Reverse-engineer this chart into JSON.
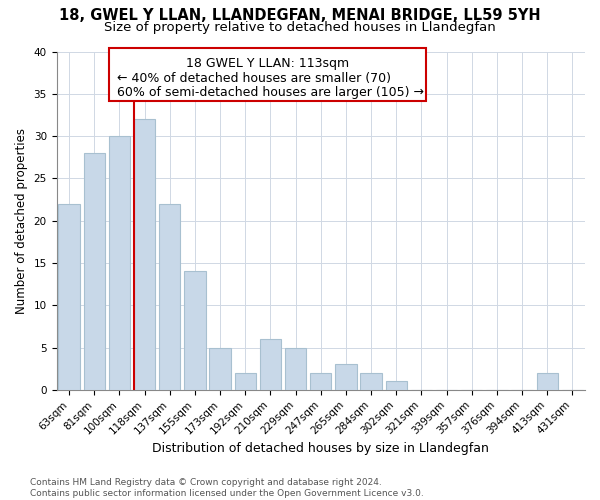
{
  "title": "18, GWEL Y LLAN, LLANDEGFAN, MENAI BRIDGE, LL59 5YH",
  "subtitle": "Size of property relative to detached houses in Llandegfan",
  "xlabel": "Distribution of detached houses by size in Llandegfan",
  "ylabel": "Number of detached properties",
  "bar_labels": [
    "63sqm",
    "81sqm",
    "100sqm",
    "118sqm",
    "137sqm",
    "155sqm",
    "173sqm",
    "192sqm",
    "210sqm",
    "229sqm",
    "247sqm",
    "265sqm",
    "284sqm",
    "302sqm",
    "321sqm",
    "339sqm",
    "357sqm",
    "376sqm",
    "394sqm",
    "413sqm",
    "431sqm"
  ],
  "bar_values": [
    22,
    28,
    30,
    32,
    22,
    14,
    5,
    2,
    6,
    5,
    2,
    3,
    2,
    1,
    0,
    0,
    0,
    0,
    0,
    2,
    0
  ],
  "bar_color": "#c8d8e8",
  "bar_edge_color": "#a8c0d0",
  "vline_color": "#cc0000",
  "vline_x": 2.575,
  "annotation_line1": "18 GWEL Y LLAN: 113sqm",
  "annotation_line2": "← 40% of detached houses are smaller (70)",
  "annotation_line3": "60% of semi-detached houses are larger (105) →",
  "ylim": [
    0,
    40
  ],
  "yticks": [
    0,
    5,
    10,
    15,
    20,
    25,
    30,
    35,
    40
  ],
  "footnote": "Contains HM Land Registry data © Crown copyright and database right 2024.\nContains public sector information licensed under the Open Government Licence v3.0.",
  "title_fontsize": 10.5,
  "subtitle_fontsize": 9.5,
  "xlabel_fontsize": 9,
  "ylabel_fontsize": 8.5,
  "tick_fontsize": 7.5,
  "annotation_fontsize": 9,
  "footnote_fontsize": 6.5,
  "background_color": "#ffffff",
  "grid_color": "#d0d8e4"
}
